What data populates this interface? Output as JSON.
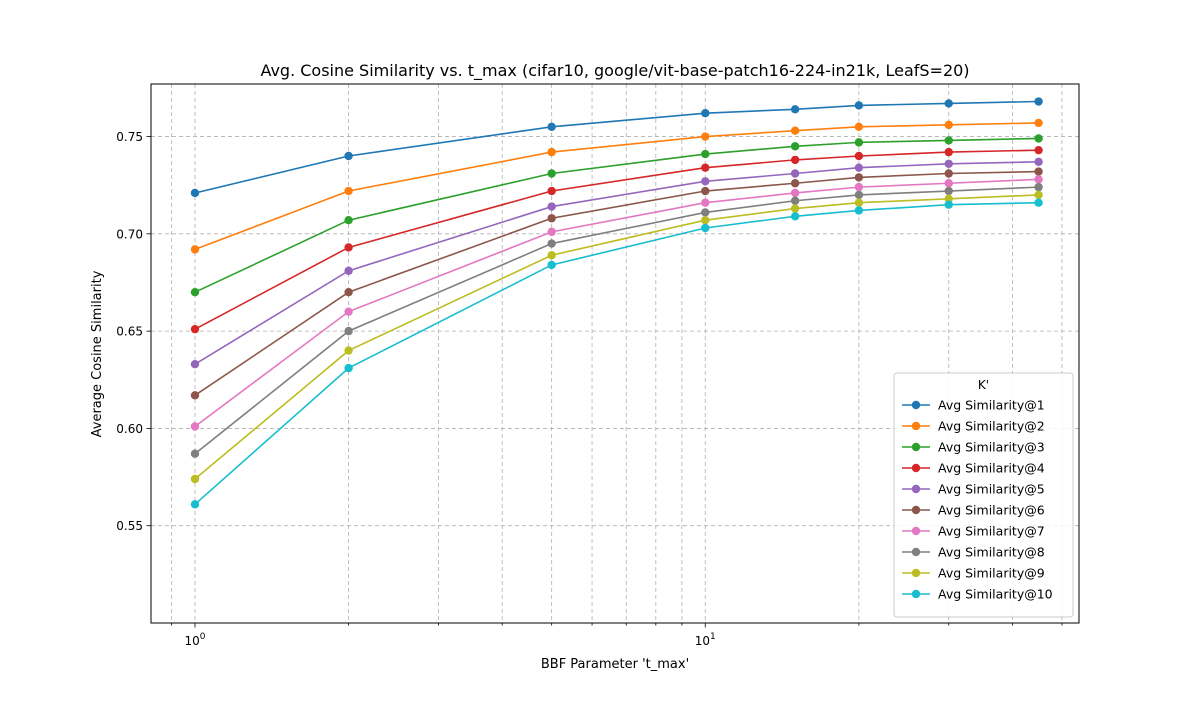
{
  "chart_data": {
    "type": "line",
    "title": "Avg. Cosine Similarity vs. t_max (cifar10, google/vit-base-patch16-224-in21k, LeafS=20)",
    "xlabel": "BBF Parameter 't_max'",
    "ylabel": "Average Cosine Similarity",
    "x_scale": "log",
    "xlim": [
      0.82,
      54
    ],
    "ylim": [
      0.5,
      0.777
    ],
    "x_ticks": [
      {
        "value": 1,
        "base": "10",
        "exp": "0"
      },
      {
        "value": 10,
        "base": "10",
        "exp": "1"
      }
    ],
    "y_ticks": [
      0.55,
      0.6,
      0.65,
      0.7,
      0.75
    ],
    "y_tick_labels": [
      "0.55",
      "0.60",
      "0.65",
      "0.70",
      "0.75"
    ],
    "grid": "both-major-minor-dashed",
    "legend_title": "K'",
    "legend_position": "lower-right",
    "x": [
      1,
      2,
      5,
      10,
      15,
      20,
      30,
      45
    ],
    "series": [
      {
        "name": "Avg Similarity@1",
        "color": "#1f77b4",
        "values": [
          0.721,
          0.74,
          0.755,
          0.762,
          0.764,
          0.766,
          0.767,
          0.768
        ]
      },
      {
        "name": "Avg Similarity@2",
        "color": "#ff7f0e",
        "values": [
          0.692,
          0.722,
          0.742,
          0.75,
          0.753,
          0.755,
          0.756,
          0.757
        ]
      },
      {
        "name": "Avg Similarity@3",
        "color": "#2ca02c",
        "values": [
          0.67,
          0.707,
          0.731,
          0.741,
          0.745,
          0.747,
          0.748,
          0.749
        ]
      },
      {
        "name": "Avg Similarity@4",
        "color": "#d62728",
        "values": [
          0.651,
          0.693,
          0.722,
          0.734,
          0.738,
          0.74,
          0.742,
          0.743
        ]
      },
      {
        "name": "Avg Similarity@5",
        "color": "#9467bd",
        "values": [
          0.633,
          0.681,
          0.714,
          0.727,
          0.731,
          0.734,
          0.736,
          0.737
        ]
      },
      {
        "name": "Avg Similarity@6",
        "color": "#8c564b",
        "values": [
          0.617,
          0.67,
          0.708,
          0.722,
          0.726,
          0.729,
          0.731,
          0.732
        ]
      },
      {
        "name": "Avg Similarity@7",
        "color": "#e377c2",
        "values": [
          0.601,
          0.66,
          0.701,
          0.716,
          0.721,
          0.724,
          0.726,
          0.728
        ]
      },
      {
        "name": "Avg Similarity@8",
        "color": "#7f7f7f",
        "values": [
          0.587,
          0.65,
          0.695,
          0.711,
          0.717,
          0.72,
          0.722,
          0.724
        ]
      },
      {
        "name": "Avg Similarity@9",
        "color": "#bcbd22",
        "values": [
          0.574,
          0.64,
          0.689,
          0.707,
          0.713,
          0.716,
          0.718,
          0.72
        ]
      },
      {
        "name": "Avg Similarity@10",
        "color": "#17becf",
        "values": [
          0.561,
          0.631,
          0.684,
          0.703,
          0.709,
          0.712,
          0.715,
          0.716
        ]
      }
    ]
  }
}
